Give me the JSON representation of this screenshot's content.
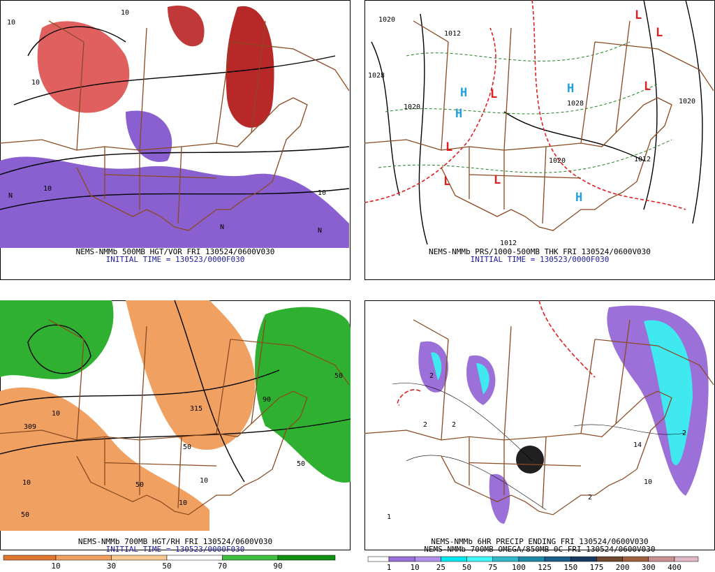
{
  "panels": [
    {
      "caption": [
        "NEMS-NMMb 500MB HGT/VOR FRI 130524/0600V030",
        "INITIAL TIME = 130523/0000F030"
      ],
      "labels": [
        "10",
        "10",
        "10",
        "10",
        "10",
        "N",
        "N",
        "N"
      ]
    },
    {
      "caption": [
        "NEMS-NMMb PRS/1000-500MB THK FRI 130524/0600V030",
        "INITIAL TIME = 130523/0000F030"
      ],
      "labels": [
        "1020",
        "1028",
        "1020",
        "1012",
        "1020",
        "1012",
        "1012",
        "1020",
        "1028",
        "H",
        "H",
        "H",
        "H",
        "L",
        "L",
        "L",
        "L",
        "L",
        "L",
        "L"
      ]
    },
    {
      "caption": [
        "NEMS-NMMb 700MB HGT/RH FRI 130524/0600V030",
        "INITIAL TIME = 130523/0000F030"
      ],
      "labels": [
        "315",
        "309",
        "10",
        "10",
        "10",
        "10",
        "50",
        "50",
        "50",
        "50",
        "50",
        "90"
      ],
      "colorbar": {
        "labels": [
          "10",
          "30",
          "50",
          "70",
          "90"
        ],
        "colors": [
          "#e07830",
          "#f0a060",
          "#f8c890",
          "#ffffff",
          "#40c040",
          "#109010"
        ]
      }
    },
    {
      "caption": [
        "NEMS-NMMb 6HR PRECIP ENDING FRI 130524/0600V030",
        "NEMS-NMMb 700MB OMEGA/850MB 0C FRI 130524/0600V030"
      ],
      "labels": [
        "2",
        "2",
        "2",
        "2",
        "2",
        "14",
        "10",
        "1"
      ],
      "colorbar": {
        "labels": [
          "1",
          "10",
          "25",
          "50",
          "75",
          "100",
          "125",
          "150",
          "175",
          "200",
          "300",
          "400"
        ],
        "colors": [
          "#ffffff",
          "#9b70d8",
          "#b090e8",
          "#00e8f0",
          "#40f8ff",
          "#30b8c8",
          "#2088a8",
          "#1a5c88",
          "#183a60",
          "#704830",
          "#a06040",
          "#c89090",
          "#e0b8c8"
        ]
      }
    }
  ]
}
